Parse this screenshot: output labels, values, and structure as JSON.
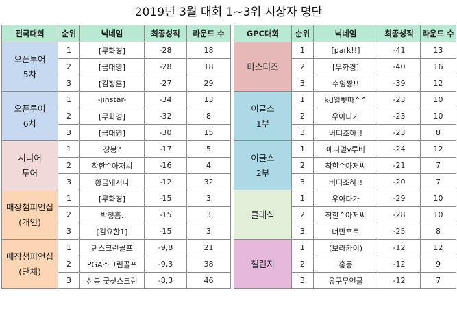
{
  "title": "2019년 3월 대회 1~3위 시상자 명단",
  "headers": {
    "left": [
      "전국대회",
      "순위",
      "닉네임",
      "최종성적",
      "라운드 수"
    ],
    "right": [
      "GPC대회",
      "순위",
      "닉네임",
      "최종성적",
      "라운드 수"
    ]
  },
  "colors": {
    "header": "#b9e8d3",
    "open_tour": "#c6d9f0",
    "senior_tour": "#f2d9d9",
    "store_champ": "#fcd5b4",
    "masters": "#e6b8b8",
    "eagles": "#add8e6",
    "classic": "#e2efd9",
    "challenge": "#e6b8dc"
  },
  "left_groups": [
    {
      "name": [
        "오픈투어",
        "5차"
      ],
      "color": "#c6d9f0",
      "rows": [
        [
          "1",
          "[무화경]",
          "-28",
          "18"
        ],
        [
          "2",
          "[금대영]",
          "-28",
          "18"
        ],
        [
          "3",
          "[김정훈]",
          "-27",
          "29"
        ]
      ]
    },
    {
      "name": [
        "오픈투어",
        "6차"
      ],
      "color": "#c6d9f0",
      "rows": [
        [
          "1",
          "-jinstar-",
          "-34",
          "13"
        ],
        [
          "2",
          "[무화경]",
          "-32",
          "8"
        ],
        [
          "3",
          "[금대영]",
          "-30",
          "15"
        ]
      ]
    },
    {
      "name": [
        "시니어",
        "투어"
      ],
      "color": "#f2d9d9",
      "rows": [
        [
          "1",
          "장봉?",
          "-17",
          "5"
        ],
        [
          "2",
          "착한^아저씨",
          "-16",
          "4"
        ],
        [
          "3",
          "황금돼지나",
          "-12",
          "32"
        ]
      ]
    },
    {
      "name": [
        "매장챔피언십",
        "(개인)"
      ],
      "color": "#fcd5b4",
      "rows": [
        [
          "1",
          "[무화경]",
          "-15",
          "3"
        ],
        [
          "2",
          "박정흠.",
          "-15",
          "3"
        ],
        [
          "3",
          "[김요한1]",
          "-15",
          "3"
        ]
      ]
    },
    {
      "name": [
        "매장챔피언십",
        "(단체)"
      ],
      "color": "#fcd5b4",
      "rows": [
        [
          "1",
          "텐스크린골프",
          "-9,8",
          "21"
        ],
        [
          "2",
          "PGA스크린골프",
          "-9,3",
          "38"
        ],
        [
          "3",
          "신봉 굿샷스크린",
          "-8,3",
          "46"
        ]
      ]
    }
  ],
  "right_groups": [
    {
      "name": [
        "마스터즈"
      ],
      "color": "#e6b8b8",
      "rows": [
        [
          "1",
          "[park!!]",
          "-41",
          "13"
        ],
        [
          "2",
          "[무화경]",
          "-40",
          "16"
        ],
        [
          "3",
          "수엉짱!!",
          "-39",
          "12"
        ]
      ]
    },
    {
      "name": [
        "이글스",
        "1부"
      ],
      "color": "#add8e6",
      "rows": [
        [
          "1",
          "kd일빳따^^",
          "-23",
          "10"
        ],
        [
          "2",
          "우아다가",
          "-23",
          "10"
        ],
        [
          "3",
          "버디조하!!",
          "-23",
          "8"
        ]
      ]
    },
    {
      "name": [
        "이글스",
        "2부"
      ],
      "color": "#add8e6",
      "rows": [
        [
          "1",
          "애니멀v루비",
          "-24",
          "12"
        ],
        [
          "2",
          "착한^아저씨",
          "-21",
          "7"
        ],
        [
          "3",
          "버디조하!!",
          "-20",
          "7"
        ]
      ]
    },
    {
      "name": [
        "클래식"
      ],
      "color": "#e2efd9",
      "rows": [
        [
          "1",
          "우아다가",
          "-29",
          "10"
        ],
        [
          "2",
          "착한^아저씨",
          "-28",
          "10"
        ],
        [
          "3",
          "너만프로",
          "-25",
          "8"
        ]
      ]
    },
    {
      "name": [
        "챌린지"
      ],
      "color": "#e6b8dc",
      "rows": [
        [
          "1",
          "(보라카이)",
          "-12",
          "12"
        ],
        [
          "2",
          "홍등",
          "-12",
          "9"
        ],
        [
          "3",
          "유구무언글",
          "-12",
          "7"
        ]
      ]
    }
  ]
}
